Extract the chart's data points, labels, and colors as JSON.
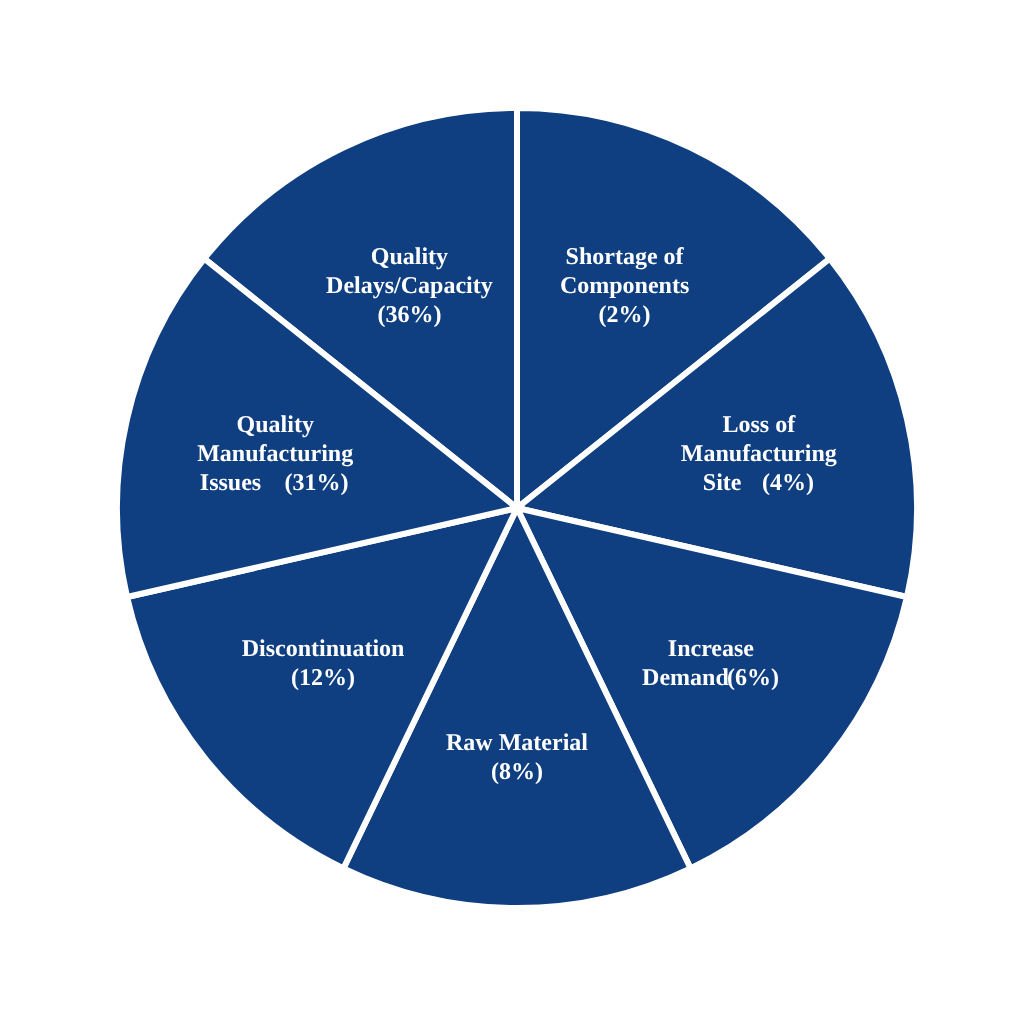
{
  "chart_data": {
    "type": "other",
    "categories": [
      "Quality\nDelays/Capacity",
      "Shortage of\nComponents",
      "Loss of\nManufacturing\nSite",
      "Increase\nDemand",
      "Raw Material",
      "Discontinuation",
      "Quality\nManufacturing\nIssues"
    ],
    "values": [
      36,
      2,
      4,
      6,
      8,
      12,
      31
    ],
    "value_labels": [
      "\n(36%)",
      "\n(2%)",
      " (4%)",
      " (6%)",
      "\n(8%)",
      "\n(12%)",
      " (31%)"
    ],
    "colors": [
      "#0f3f80",
      "#0f3f80",
      "#0f3f80",
      "#0f3f80",
      "#0f3f80",
      "#0f3f80",
      "#0f3f80"
    ]
  }
}
